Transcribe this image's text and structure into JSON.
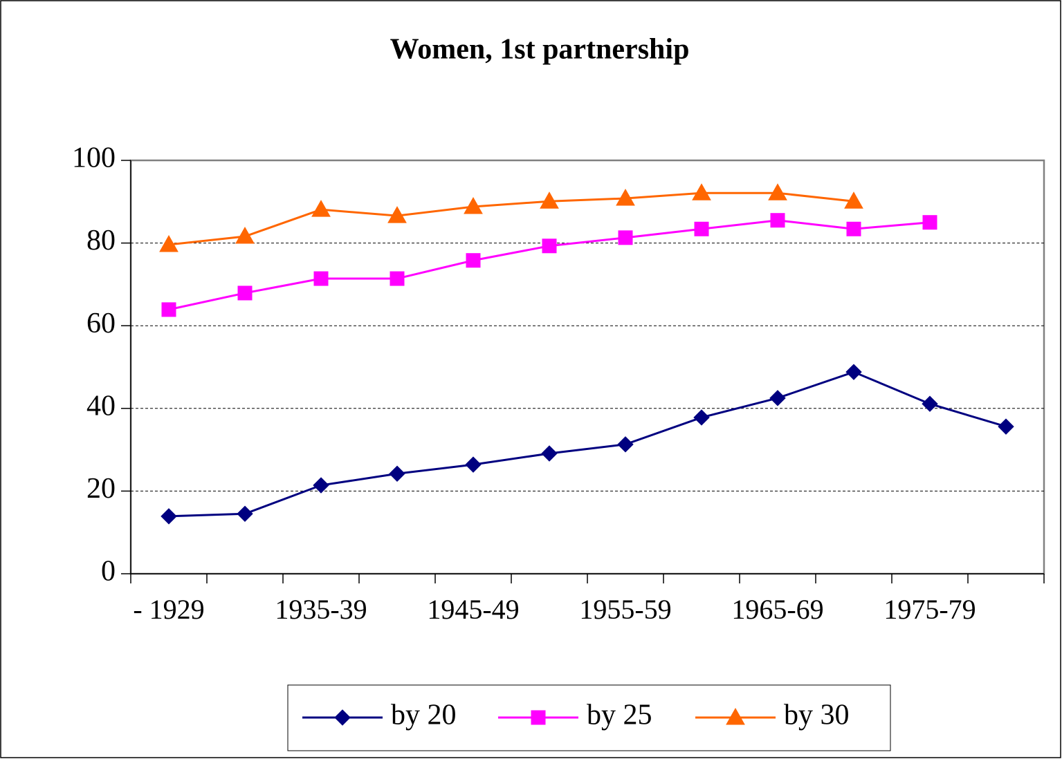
{
  "chart_data": {
    "type": "line",
    "title": "Women, 1st partnership",
    "categories": [
      "- 1929",
      null,
      "1935-39",
      null,
      "1945-49",
      null,
      "1955-59",
      null,
      "1965-69",
      null,
      "1975-79",
      null
    ],
    "series": [
      {
        "name": "by 20",
        "color": "#000080",
        "marker": "diamond",
        "values": [
          13.9,
          14.5,
          21.4,
          24.2,
          26.4,
          29.1,
          31.3,
          37.8,
          42.5,
          48.8,
          41.1,
          35.6
        ]
      },
      {
        "name": "by 25",
        "color": "#ff00ff",
        "marker": "square",
        "values": [
          63.9,
          67.9,
          71.4,
          71.4,
          75.8,
          79.3,
          81.3,
          83.4,
          85.5,
          83.4,
          85.0,
          null
        ]
      },
      {
        "name": "by 30",
        "color": "#ff6600",
        "marker": "triangle",
        "values": [
          79.6,
          81.6,
          88.1,
          86.6,
          88.8,
          90.1,
          90.8,
          92.1,
          92.1,
          90.1,
          null,
          null
        ]
      }
    ],
    "ylim": [
      0,
      100
    ],
    "yticks": [
      0,
      20,
      40,
      60,
      80,
      100
    ],
    "grid": true,
    "legend": "bottom"
  }
}
